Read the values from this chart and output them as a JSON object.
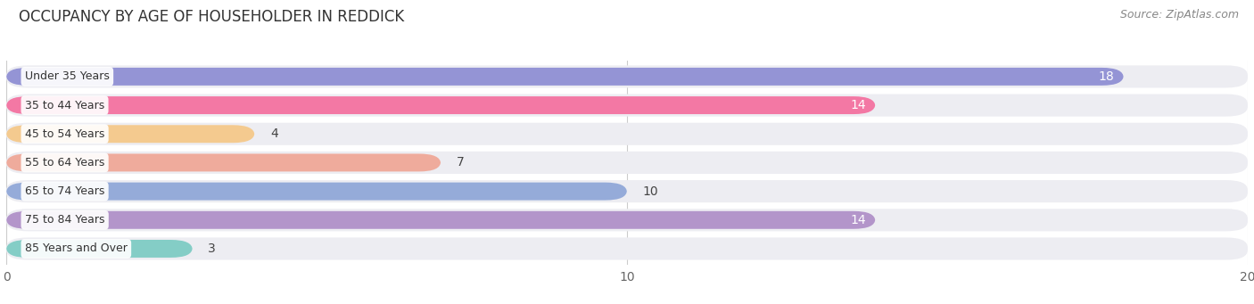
{
  "title": "OCCUPANCY BY AGE OF HOUSEHOLDER IN REDDICK",
  "source": "Source: ZipAtlas.com",
  "categories": [
    "Under 35 Years",
    "35 to 44 Years",
    "45 to 54 Years",
    "55 to 64 Years",
    "65 to 74 Years",
    "75 to 84 Years",
    "85 Years and Over"
  ],
  "values": [
    18,
    14,
    4,
    7,
    10,
    14,
    3
  ],
  "bar_colors": [
    "#8f8fd4",
    "#f472a0",
    "#f5c98a",
    "#f0a898",
    "#90a8d8",
    "#b090c8",
    "#7eccc4"
  ],
  "label_colors": [
    "white",
    "white",
    "black",
    "black",
    "black",
    "white",
    "black"
  ],
  "xlim": [
    0,
    20
  ],
  "xticks": [
    0,
    10,
    20
  ],
  "background_color": "#ffffff",
  "bar_bg_color": "#ededf2",
  "title_fontsize": 12,
  "source_fontsize": 9,
  "bar_label_fontsize": 10,
  "category_fontsize": 9
}
